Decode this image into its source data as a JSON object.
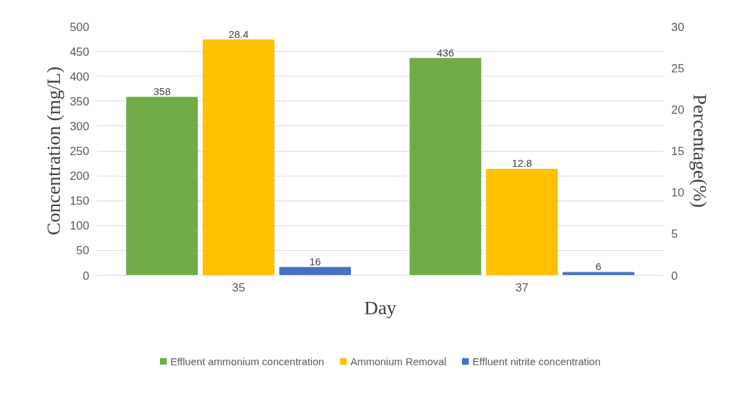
{
  "chart_data": {
    "type": "bar",
    "xlabel": "Day",
    "ylabel": "Concentration (mg/L)",
    "y2label": "Percentage(%)",
    "categories": [
      "35",
      "37"
    ],
    "series": [
      {
        "name": "Effluent ammonium concentration",
        "color": "#70ad47",
        "values": [
          358,
          436
        ]
      },
      {
        "name": "Ammonium Removal",
        "color": "#ffc000",
        "values": [
          28.4,
          12.8
        ],
        "axis": "y2"
      },
      {
        "name": "Effluent nitrite concentration",
        "color": "#4472c4",
        "values": [
          16,
          6
        ]
      }
    ],
    "ylim": [
      0,
      500
    ],
    "yticks": [
      0,
      50,
      100,
      150,
      200,
      250,
      300,
      350,
      400,
      450,
      500
    ],
    "y2lim": [
      0,
      30
    ],
    "y2ticks": [
      0,
      5,
      10,
      15,
      20,
      25,
      30
    ],
    "grid": "y",
    "legend": "bottom",
    "data_labels": true
  }
}
